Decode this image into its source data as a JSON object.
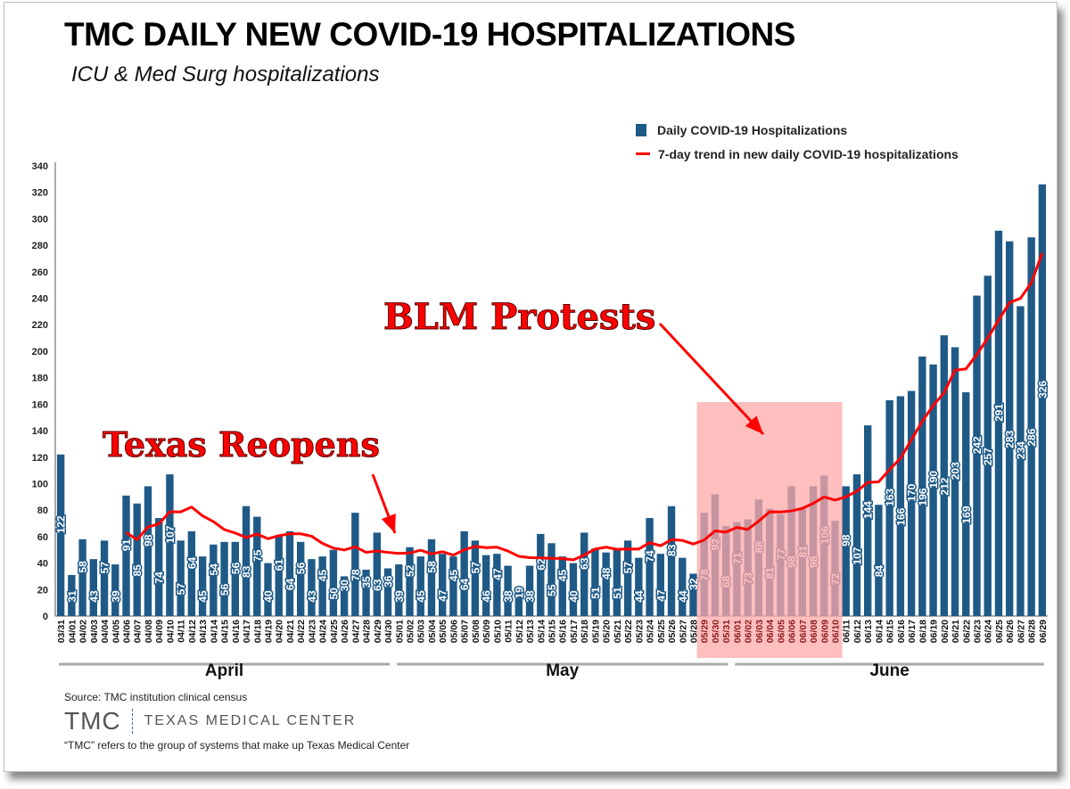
{
  "title": "TMC DAILY NEW COVID-19 HOSPITALIZATIONS",
  "subtitle": "ICU & Med Surg hospitalizations",
  "footer": {
    "source": "Source: TMC institution clinical census",
    "logo_short": "TMC",
    "logo_full": "TEXAS MEDICAL CENTER",
    "note": "“TMC” refers to the group of systems that make up Texas Medical Center"
  },
  "colors": {
    "bar": "#1f5a87",
    "trend": "#ff0000",
    "highlight": "#ffaaaa"
  },
  "chart_data": {
    "type": "bar",
    "title": "TMC DAILY NEW COVID-19 HOSPITALIZATIONS",
    "xlabel": "",
    "ylabel": "",
    "ylim": [
      0,
      340
    ],
    "yticks": [
      0,
      20,
      40,
      60,
      80,
      100,
      120,
      140,
      160,
      180,
      200,
      220,
      240,
      260,
      280,
      300,
      320,
      340
    ],
    "legend_position": "top-right",
    "categories": [
      "03/31",
      "04/01",
      "04/02",
      "04/03",
      "04/04",
      "04/05",
      "04/06",
      "04/07",
      "04/08",
      "04/09",
      "04/10",
      "04/11",
      "04/12",
      "04/13",
      "04/14",
      "04/15",
      "04/16",
      "04/17",
      "04/18",
      "04/19",
      "04/20",
      "04/21",
      "04/22",
      "04/23",
      "04/24",
      "04/25",
      "04/26",
      "04/27",
      "04/28",
      "04/29",
      "04/30",
      "05/01",
      "05/02",
      "05/03",
      "05/04",
      "05/05",
      "05/06",
      "05/07",
      "05/08",
      "05/09",
      "05/10",
      "05/11",
      "05/12",
      "05/13",
      "05/14",
      "05/15",
      "05/16",
      "05/17",
      "05/18",
      "05/19",
      "05/20",
      "05/21",
      "05/22",
      "05/23",
      "05/24",
      "05/25",
      "05/26",
      "05/27",
      "05/28",
      "05/29",
      "05/30",
      "05/31",
      "06/01",
      "06/02",
      "06/03",
      "06/04",
      "06/05",
      "06/06",
      "06/07",
      "06/08",
      "06/09",
      "06/10",
      "06/11",
      "06/12",
      "06/13",
      "06/14",
      "06/15",
      "06/16",
      "06/17",
      "06/18",
      "06/19",
      "06/20",
      "06/21",
      "06/22",
      "06/23",
      "06/24",
      "06/25",
      "06/26",
      "06/27",
      "06/28",
      "06/29"
    ],
    "series": [
      {
        "name": "Daily COVID-19 Hospitalizations",
        "type": "bar",
        "values": [
          122,
          31,
          58,
          43,
          57,
          39,
          91,
          85,
          98,
          74,
          107,
          57,
          64,
          45,
          54,
          56,
          56,
          83,
          75,
          40,
          61,
          64,
          56,
          43,
          45,
          50,
          30,
          78,
          35,
          63,
          36,
          39,
          52,
          45,
          58,
          47,
          45,
          64,
          57,
          46,
          47,
          38,
          19,
          38,
          62,
          55,
          45,
          40,
          63,
          51,
          48,
          51,
          57,
          44,
          74,
          47,
          83,
          44,
          32,
          78,
          92,
          68,
          71,
          73,
          88,
          81,
          77,
          98,
          81,
          98,
          106,
          72,
          98,
          107,
          144,
          84,
          163,
          166,
          170,
          196,
          190,
          212,
          203,
          169,
          242,
          257,
          291,
          283,
          234,
          286,
          326
        ]
      },
      {
        "name": "7-day trend in new daily COVID-19 hospitalizations",
        "type": "line",
        "values": [
          null,
          null,
          null,
          null,
          null,
          null,
          63.0,
          57.7,
          67.3,
          69.6,
          78.7,
          78.7,
          82.3,
          75.7,
          71.3,
          65.3,
          62.7,
          59.3,
          61.9,
          58.4,
          60.7,
          62.1,
          62.1,
          60.3,
          54.9,
          51.3,
          49.9,
          52.3,
          48.1,
          49.1,
          48.1,
          47.3,
          47.6,
          49.7,
          46.9,
          48.6,
          46.0,
          50.0,
          52.6,
          51.7,
          52.0,
          49.1,
          45.1,
          44.1,
          43.9,
          43.6,
          43.4,
          42.4,
          46.0,
          50.6,
          52.0,
          50.4,
          50.7,
          50.6,
          55.4,
          53.1,
          57.7,
          57.1,
          54.4,
          57.4,
          64.3,
          63.4,
          66.9,
          65.4,
          71.7,
          78.7,
          78.6,
          79.4,
          81.3,
          85.1,
          89.9,
          87.6,
          90.0,
          94.3,
          100.9,
          101.3,
          110.6,
          119.1,
          133.1,
          147.1,
          159.0,
          168.7,
          185.7,
          186.6,
          197.4,
          209.9,
          223.4,
          236.7,
          239.9,
          251.7,
          274.1
        ]
      }
    ],
    "month_groups": [
      {
        "label": "April",
        "from": "03/31",
        "to": "04/30"
      },
      {
        "label": "May",
        "from": "05/01",
        "to": "05/31"
      },
      {
        "label": "June",
        "from": "06/01",
        "to": "06/29"
      }
    ],
    "highlight_range": {
      "from": "05/29",
      "to": "06/10"
    },
    "annotations": [
      {
        "text": "Texas Reopens",
        "points_to": "04/30"
      },
      {
        "text": "BLM Protests",
        "points_to": "06/04"
      }
    ]
  }
}
